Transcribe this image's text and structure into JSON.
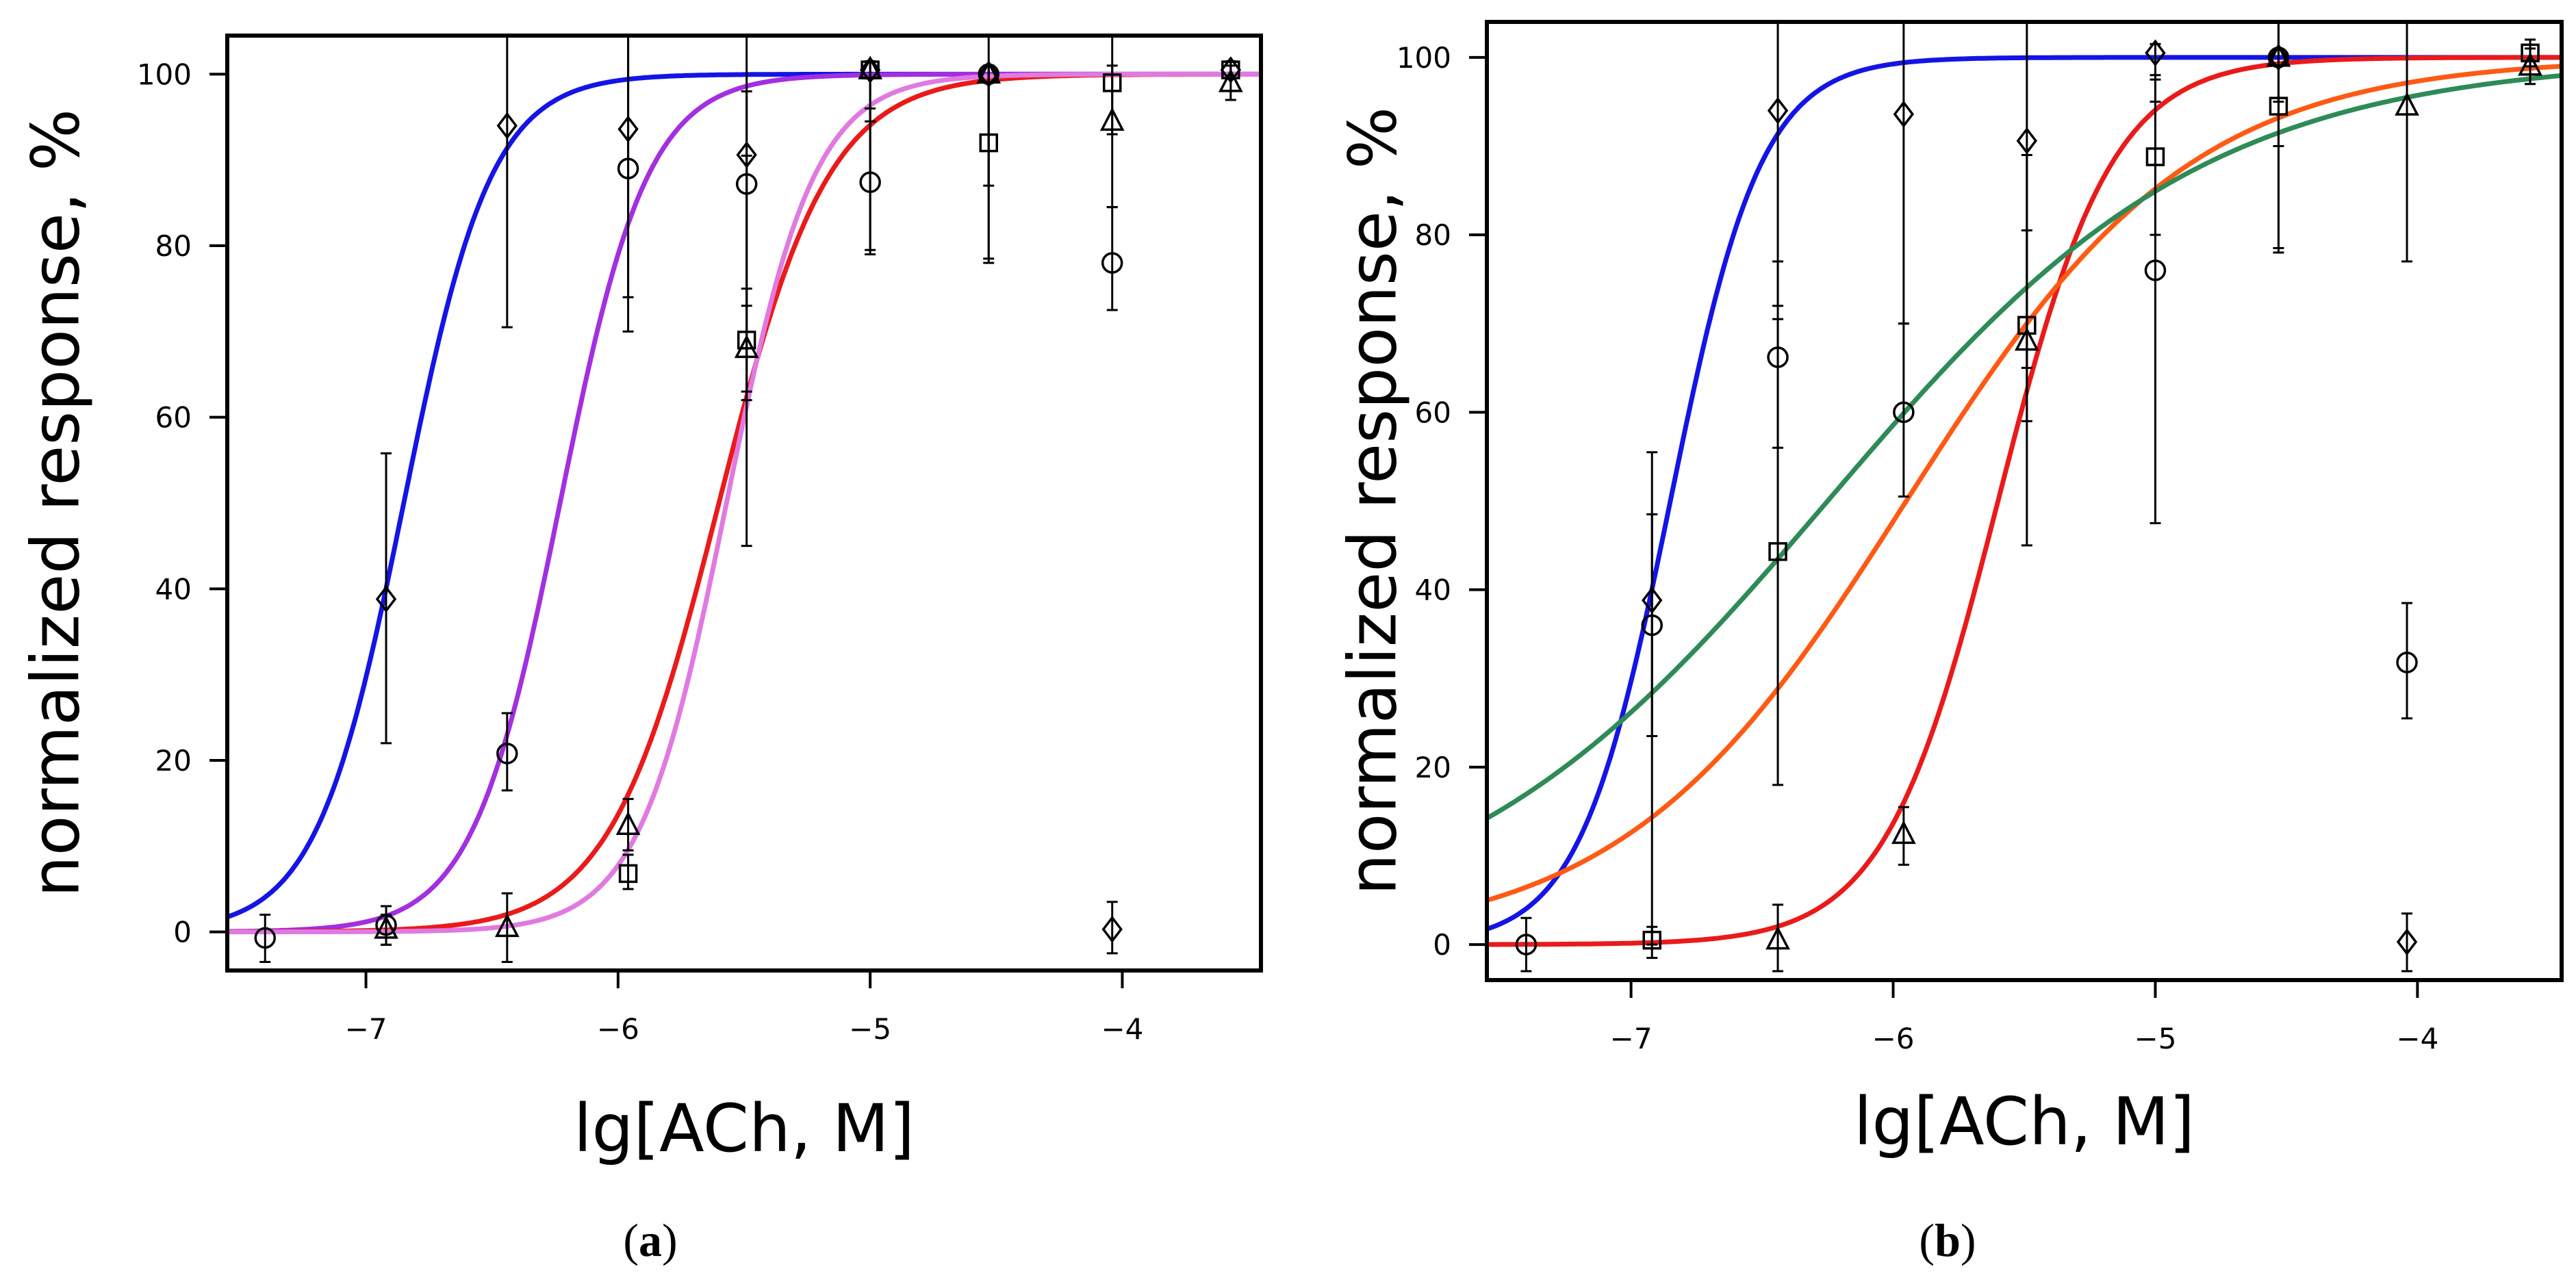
{
  "chart_data": [
    {
      "panel": "a",
      "type": "line",
      "panel_label": {
        "open": "(",
        "letter": "a",
        "close": ")"
      },
      "xlabel": "lg[ACh, M]",
      "ylabel": "normalized response, %",
      "xlim": [
        -7.55,
        -3.45
      ],
      "ylim": [
        -4.5,
        104.5
      ],
      "xticks": [
        -7,
        -6,
        -5,
        -4
      ],
      "xtick_labels": [
        "−7",
        "−6",
        "−5",
        "−4"
      ],
      "yticks": [
        0,
        20,
        40,
        60,
        80,
        100
      ],
      "ytick_labels": [
        "0",
        "20",
        "40",
        "60",
        "80",
        "100"
      ],
      "series": [
        {
          "name": "blue",
          "color": "#1414e6",
          "marker": "diamond",
          "ec50_log": -6.85,
          "hill": 2.5,
          "points": [
            {
              "x": -6.92,
              "y": 38.8,
              "lo": 22.0,
              "hi": 55.8
            },
            {
              "x": -6.44,
              "y": 94.0,
              "lo": 70.5,
              "hi": 104.5
            },
            {
              "x": -5.96,
              "y": 93.6,
              "lo": 74.0,
              "hi": 104.5
            },
            {
              "x": -5.49,
              "y": 90.6,
              "lo": 62.0,
              "hi": 104.5
            },
            {
              "x": -5.0,
              "y": 100.5,
              "lo": 79.0,
              "hi": 101.5
            },
            {
              "x": -4.53,
              "y": 100.0,
              "lo": 78.0,
              "hi": 101.0
            },
            {
              "x": -4.04,
              "y": 0.3,
              "lo": -2.5,
              "hi": 3.5
            },
            {
              "x": -3.57,
              "y": 100.5,
              "lo": 99.5,
              "hi": 101.5
            }
          ]
        },
        {
          "name": "purple",
          "color": "#a22fe0",
          "marker": "circle",
          "ec50_log": -6.23,
          "hill": 2.5,
          "points": [
            {
              "x": -7.4,
              "y": -0.7,
              "lo": -3.5,
              "hi": 2.0
            },
            {
              "x": -6.92,
              "y": 0.8,
              "lo": -1.5,
              "hi": 3.0
            },
            {
              "x": -6.44,
              "y": 20.8,
              "lo": 16.5,
              "hi": 25.5
            },
            {
              "x": -5.96,
              "y": 89.0,
              "lo": 70.0,
              "hi": 104.5
            },
            {
              "x": -5.49,
              "y": 87.2,
              "lo": 73.0,
              "hi": 98.0
            },
            {
              "x": -5.0,
              "y": 87.4,
              "lo": 79.5,
              "hi": 96.0
            },
            {
              "x": -4.53,
              "y": 100.0,
              "lo": 87.0,
              "hi": 101.0
            },
            {
              "x": -4.04,
              "y": 78.0,
              "lo": 72.5,
              "hi": 84.5
            }
          ]
        },
        {
          "name": "red",
          "color": "#ea1a1a",
          "marker": "triangle",
          "ec50_log": -5.6,
          "hill": 2.0,
          "points": [
            {
              "x": -6.92,
              "y": 0.3,
              "lo": -1.5,
              "hi": 2.0
            },
            {
              "x": -6.44,
              "y": 0.5,
              "lo": -3.5,
              "hi": 4.5
            },
            {
              "x": -5.96,
              "y": 12.4,
              "lo": 9.5,
              "hi": 15.5
            },
            {
              "x": -5.49,
              "y": 68.0,
              "lo": 45.0,
              "hi": 90.5
            },
            {
              "x": -5.0,
              "y": 100.5,
              "lo": 94.5,
              "hi": 101.5
            },
            {
              "x": -4.53,
              "y": 100.0,
              "lo": 99.0,
              "hi": 101.0
            },
            {
              "x": -4.04,
              "y": 94.5,
              "lo": 84.5,
              "hi": 104.5
            },
            {
              "x": -3.57,
              "y": 99.0,
              "lo": 97.0,
              "hi": 101.0
            }
          ]
        },
        {
          "name": "violet",
          "color": "#e07ae0",
          "marker": "square",
          "ec50_log": -5.57,
          "hill": 2.5,
          "points": [
            {
              "x": -5.96,
              "y": 6.8,
              "lo": 5.0,
              "hi": 9.0
            },
            {
              "x": -5.49,
              "y": 69.0,
              "lo": 63.0,
              "hi": 75.0
            },
            {
              "x": -5.0,
              "y": 100.5,
              "lo": 99.5,
              "hi": 101.5
            },
            {
              "x": -4.53,
              "y": 92.0,
              "lo": 78.5,
              "hi": 104.5
            },
            {
              "x": -4.04,
              "y": 99.0,
              "lo": 93.0,
              "hi": 101.0
            },
            {
              "x": -3.57,
              "y": 100.5,
              "lo": 99.5,
              "hi": 101.5
            }
          ]
        }
      ]
    },
    {
      "panel": "b",
      "type": "line",
      "panel_label": {
        "open": "(",
        "letter": "b",
        "close": ")"
      },
      "xlabel": "lg[ACh, M]",
      "ylabel": "normalized response, %",
      "xlim": [
        -7.55,
        -3.45
      ],
      "ylim": [
        -4.0,
        104.0
      ],
      "xticks": [
        -7,
        -6,
        -5,
        -4
      ],
      "xtick_labels": [
        "−7",
        "−6",
        "−5",
        "−4"
      ],
      "yticks": [
        0,
        20,
        40,
        60,
        80,
        100
      ],
      "ytick_labels": [
        "0",
        "20",
        "40",
        "60",
        "80",
        "100"
      ],
      "series": [
        {
          "name": "blue",
          "color": "#1414e6",
          "marker": "diamond",
          "ec50_log": -6.85,
          "hill": 2.5,
          "points": [
            {
              "x": -6.92,
              "y": 38.8,
              "lo": 23.5,
              "hi": 55.5
            },
            {
              "x": -6.44,
              "y": 94.0,
              "lo": 72.0,
              "hi": 104.0
            },
            {
              "x": -5.96,
              "y": 93.6,
              "lo": 70.0,
              "hi": 104.0
            },
            {
              "x": -5.49,
              "y": 90.6,
              "lo": 65.0,
              "hi": 104.0
            },
            {
              "x": -5.0,
              "y": 100.5,
              "lo": 95.0,
              "hi": 101.5
            },
            {
              "x": -4.53,
              "y": 100.0,
              "lo": 90.0,
              "hi": 104.0
            },
            {
              "x": -4.04,
              "y": 0.3,
              "lo": -3.0,
              "hi": 3.5
            }
          ]
        },
        {
          "name": "red",
          "color": "#ea1a1a",
          "marker": "triangle",
          "ec50_log": -5.6,
          "hill": 2.0,
          "points": [
            {
              "x": -6.44,
              "y": 0.5,
              "lo": -3.0,
              "hi": 4.5
            },
            {
              "x": -5.96,
              "y": 12.4,
              "lo": 9.0,
              "hi": 15.5
            },
            {
              "x": -5.49,
              "y": 68.0,
              "lo": 45.0,
              "hi": 89.0
            },
            {
              "x": -4.53,
              "y": 100.0,
              "lo": 78.0,
              "hi": 104.0
            },
            {
              "x": -4.04,
              "y": 94.5,
              "lo": 77.0,
              "hi": 104.0
            },
            {
              "x": -3.57,
              "y": 99.0,
              "lo": 97.0,
              "hi": 101.0
            }
          ]
        },
        {
          "name": "orange",
          "color": "#ff5a14",
          "marker": "square",
          "ec50_log": -5.95,
          "hill": 0.8,
          "points": [
            {
              "x": -6.92,
              "y": 0.5,
              "lo": -1.5,
              "hi": 2.0
            },
            {
              "x": -6.44,
              "y": 44.3,
              "lo": 18.0,
              "hi": 70.5
            },
            {
              "x": -5.49,
              "y": 69.8,
              "lo": 59.0,
              "hi": 80.5
            },
            {
              "x": -5.0,
              "y": 88.8,
              "lo": 80.0,
              "hi": 97.5
            },
            {
              "x": -4.53,
              "y": 94.5,
              "lo": 78.5,
              "hi": 104.0
            },
            {
              "x": -3.57,
              "y": 100.5,
              "lo": 99.0,
              "hi": 102.0
            }
          ]
        },
        {
          "name": "green",
          "color": "#2e8b57",
          "marker": "circle",
          "ec50_log": -6.25,
          "hill": 0.6,
          "points": [
            {
              "x": -7.4,
              "y": 0.0,
              "lo": -3.0,
              "hi": 3.0
            },
            {
              "x": -6.92,
              "y": 36.0,
              "lo": 0.0,
              "hi": 48.5
            },
            {
              "x": -6.44,
              "y": 66.2,
              "lo": 56.0,
              "hi": 77.0
            },
            {
              "x": -5.96,
              "y": 60.0,
              "lo": 50.5,
              "hi": 70.0
            },
            {
              "x": -5.0,
              "y": 76.0,
              "lo": 47.5,
              "hi": 98.0
            },
            {
              "x": -4.53,
              "y": 100.0,
              "lo": 95.0,
              "hi": 104.0
            },
            {
              "x": -4.04,
              "y": 31.8,
              "lo": 25.5,
              "hi": 38.5
            }
          ]
        }
      ]
    }
  ]
}
